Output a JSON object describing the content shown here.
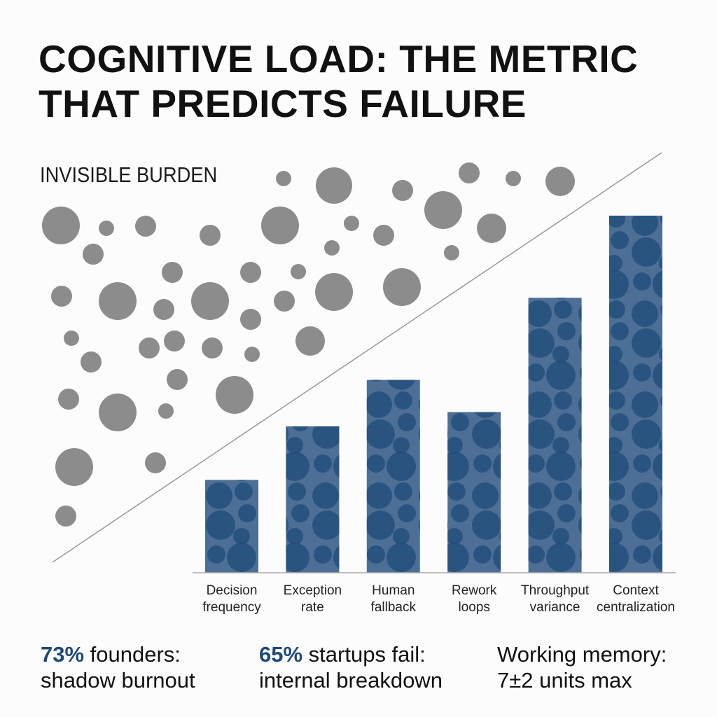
{
  "chart_data": {
    "type": "bar",
    "title": "COGNITIVE LOAD: THE METRIC THAT PREDICTS FAILURE",
    "annotation": "INVISIBLE BURDEN",
    "categories": [
      "Decision frequency",
      "Exception rate",
      "Human fallback",
      "Rework loops",
      "Throughput variance",
      "Context centralization"
    ],
    "values": [
      26,
      41,
      54,
      45,
      77,
      100
    ],
    "color": "#4d6f96"
  },
  "stats": [
    {
      "highlight": "73%",
      "line1": "founders:",
      "line2": "shadow burnout"
    },
    {
      "highlight": "65%",
      "line1": "startups fail:",
      "line2": "internal breakdown"
    },
    {
      "line1": "Working memory:",
      "line2": "7±2 units max"
    }
  ]
}
